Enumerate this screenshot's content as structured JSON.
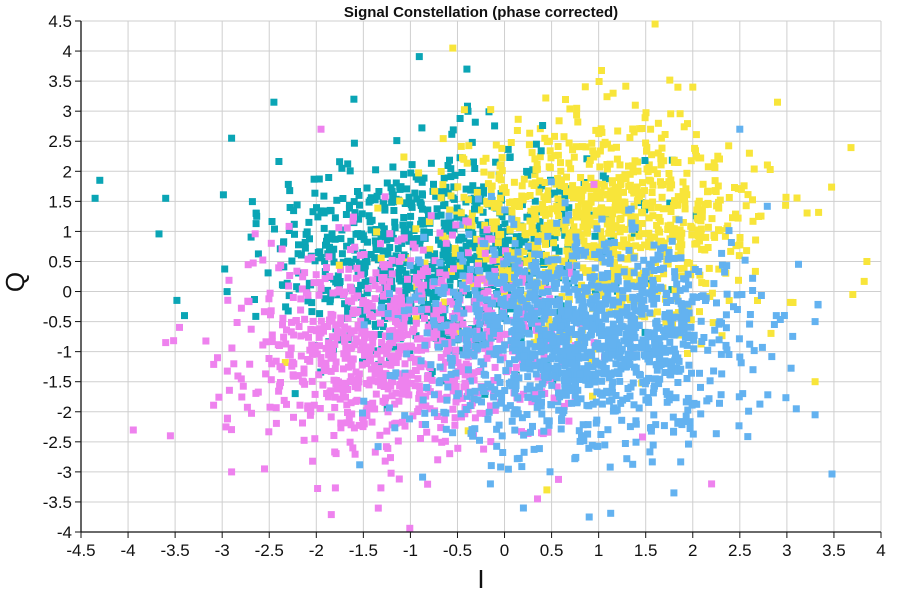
{
  "chart_data": {
    "type": "scatter",
    "title": "Signal Constellation (phase corrected)",
    "xlabel": "I",
    "ylabel": "Q",
    "xlim": [
      -4.5,
      4
    ],
    "ylim": [
      -4,
      4.5
    ],
    "x_ticks": [
      "-4.5",
      "-4",
      "-3.5",
      "-3",
      "-2.5",
      "-2",
      "-1.5",
      "-1",
      "-0.5",
      "0",
      "0.5",
      "1",
      "1.5",
      "2",
      "2.5",
      "3",
      "3.5",
      "4"
    ],
    "y_ticks": [
      "-4",
      "-3.5",
      "-3",
      "-2.5",
      "-2",
      "-1.5",
      "-1",
      "-0.5",
      "0",
      "0.5",
      "1",
      "1.5",
      "2",
      "2.5",
      "3",
      "3.5",
      "4",
      "4.5"
    ],
    "grid": true,
    "legend": "none",
    "marker": "square",
    "series": [
      {
        "name": "teal cluster",
        "color": "#0aa5b5",
        "center": [
          -0.7,
          0.6
        ],
        "spread": [
          0.85,
          0.85
        ],
        "count": 900,
        "sample_points": [
          [
            -4.3,
            1.85
          ],
          [
            -4.35,
            1.55
          ],
          [
            -3.6,
            1.55
          ],
          [
            -2.45,
            3.15
          ],
          [
            -0.4,
            3.7
          ],
          [
            -1.6,
            3.2
          ],
          [
            -2.9,
            2.55
          ],
          [
            -3.4,
            -0.4
          ]
        ]
      },
      {
        "name": "yellow cluster",
        "color": "#f8e53a",
        "center": [
          1.0,
          1.2
        ],
        "spread": [
          0.85,
          0.85
        ],
        "count": 900,
        "sample_points": [
          [
            1.6,
            4.45
          ],
          [
            -0.55,
            4.05
          ],
          [
            3.85,
            0.5
          ],
          [
            3.7,
            -0.05
          ],
          [
            3.3,
            -1.5
          ],
          [
            2.9,
            3.15
          ],
          [
            0.45,
            -3.3
          ],
          [
            2.0,
            3.4
          ]
        ]
      },
      {
        "name": "pink cluster",
        "color": "#ee82ee",
        "center": [
          -1.1,
          -0.9
        ],
        "spread": [
          0.85,
          0.85
        ],
        "count": 900,
        "sample_points": [
          [
            -3.55,
            -2.4
          ],
          [
            -3.6,
            -0.85
          ],
          [
            -2.9,
            -3.0
          ],
          [
            -1.95,
            2.7
          ],
          [
            2.2,
            -3.2
          ],
          [
            -2.55,
            -2.95
          ],
          [
            0.35,
            -3.45
          ],
          [
            -3.05,
            -1.1
          ]
        ]
      },
      {
        "name": "blue cluster",
        "color": "#63b2f0",
        "center": [
          0.8,
          -0.8
        ],
        "spread": [
          0.85,
          0.85
        ],
        "count": 1300,
        "sample_points": [
          [
            0.9,
            -3.75
          ],
          [
            0.2,
            -3.6
          ],
          [
            3.3,
            -2.05
          ],
          [
            3.1,
            -1.95
          ],
          [
            1.8,
            -3.35
          ],
          [
            3.3,
            -0.5
          ],
          [
            2.5,
            2.7
          ],
          [
            -0.15,
            -3.2
          ]
        ]
      }
    ]
  }
}
